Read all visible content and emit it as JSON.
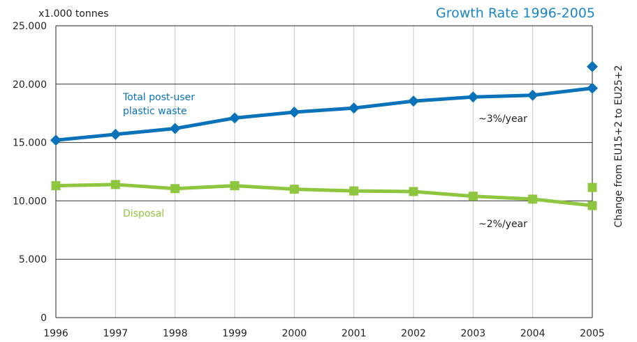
{
  "chart_data": {
    "type": "line",
    "title": "Growth Rate 1996-2005",
    "ylabel": "x1.000 tonnes",
    "right_label": "Change from EU15+2 to EU25+2",
    "x": [
      "1996",
      "1997",
      "1998",
      "1999",
      "2000",
      "2001",
      "2002",
      "2003",
      "2004",
      "2005"
    ],
    "ylim": [
      0,
      25000
    ],
    "yticks": [
      0,
      5000,
      10000,
      15000,
      20000,
      25000
    ],
    "ytick_labels": [
      "0",
      "5.000",
      "10.000",
      "15.000",
      "20.000",
      "25.000"
    ],
    "grid": {
      "horizontal": true,
      "vertical": true
    },
    "series": [
      {
        "name": "Total post-user plastic waste",
        "name_lines": [
          "Total post-user",
          "plastic waste"
        ],
        "color": "#0a72b8",
        "marker": "diamond",
        "values": [
          15200,
          15700,
          16200,
          17100,
          17600,
          17950,
          18550,
          18900,
          19050,
          19650
        ],
        "extra_point": {
          "x": "2005",
          "value": 21500
        },
        "rate_label": "~3%/year"
      },
      {
        "name": "Disposal",
        "name_lines": [
          "Disposal"
        ],
        "color": "#8ec63f",
        "marker": "square",
        "values": [
          11300,
          11400,
          11050,
          11300,
          11000,
          10850,
          10800,
          10400,
          10150,
          9600
        ],
        "extra_point": {
          "x": "2005",
          "value": 11150
        },
        "rate_label": "~2%/year"
      }
    ]
  }
}
